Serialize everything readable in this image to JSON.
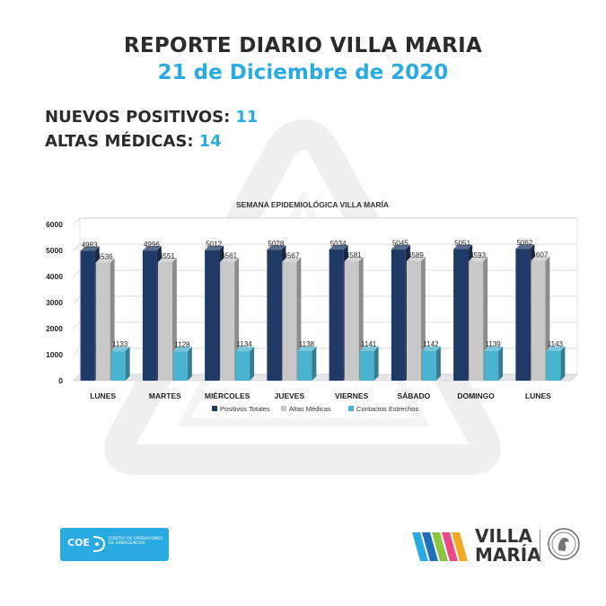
{
  "header": {
    "title": "REPORTE DIARIO VILLA MARIA",
    "subtitle": "21 de Diciembre de 2020"
  },
  "stats": [
    {
      "label": "NUEVOS POSITIVOS:",
      "value": "11"
    },
    {
      "label": "ALTAS MÉDICAS:",
      "value": "14"
    }
  ],
  "colors": {
    "accent": "#29aae1",
    "text": "#2b2b2b",
    "positivos": "#1f3a66",
    "altas": "#c8c8c8",
    "contactos": "#4ab3d0",
    "coe": "#29aae1"
  },
  "chart_data": {
    "type": "bar",
    "title": "SEMANA EPIDEMIOLÓGICA VILLA MARÍA",
    "categories": [
      "LUNES",
      "MARTES",
      "MIÉRCOLES",
      "JUEVES",
      "VIERNES",
      "SÁBADO",
      "DOMINGO",
      "LUNES"
    ],
    "series": [
      {
        "name": "Positivos Totales",
        "values": [
          4983,
          4996,
          5012,
          5028,
          5034,
          5045,
          5051,
          5062
        ]
      },
      {
        "name": "Altas Médicas",
        "values": [
          4536,
          4551,
          4561,
          4567,
          4581,
          4589,
          4593,
          4607
        ]
      },
      {
        "name": "Contactos Estrechos",
        "values": [
          1133,
          1128,
          1134,
          1138,
          1141,
          1142,
          1139,
          1143
        ]
      }
    ],
    "ylim": [
      0,
      6000
    ],
    "yticks": [
      0,
      1000,
      2000,
      3000,
      4000,
      5000,
      6000
    ],
    "grid": true,
    "legend": "bottom",
    "style": "3d"
  },
  "footer": {
    "coe_logo_text": "COE",
    "coe_subtext": "CENTRO DE OPERACIONES DE EMERGENCIAS",
    "vm_logo_line1": "VILLA",
    "vm_logo_line2": "MARÍA",
    "seal_icon": "municipal-seal-icon"
  }
}
